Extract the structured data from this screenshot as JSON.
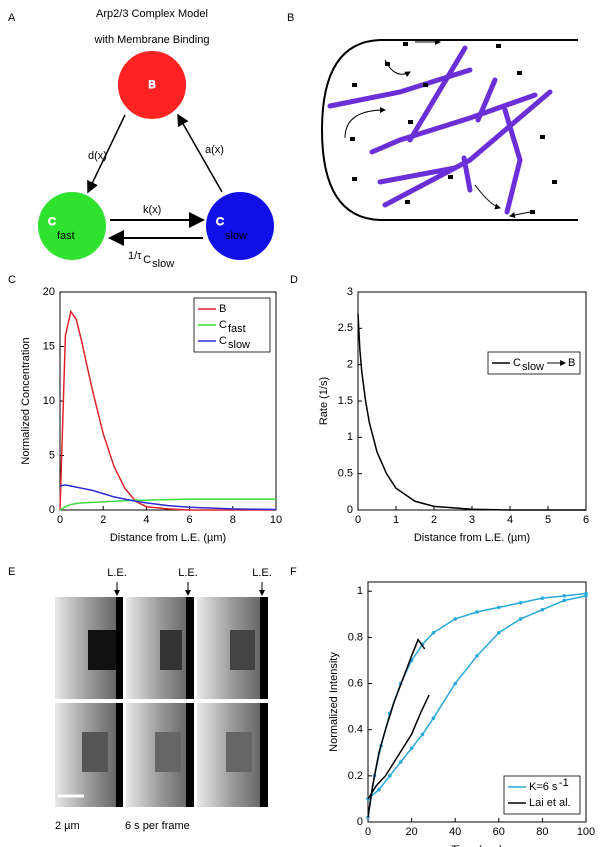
{
  "panel_labels": [
    "A",
    "B",
    "C",
    "D",
    "E",
    "F"
  ],
  "diagram_a": {
    "title": [
      "Arp2/3 Complex Model",
      "with Membrane Binding"
    ],
    "nodes": [
      {
        "label": "B"
      },
      {
        "label": "C",
        "sub": "fast"
      },
      {
        "label": "C",
        "sub": "slow"
      }
    ],
    "edges": [
      {
        "label": "d(x)"
      },
      {
        "label": "a(x)"
      },
      {
        "label": "k(x)"
      },
      {
        "label": "1/τ",
        "sub": "C",
        "subsub": "slow"
      }
    ]
  },
  "figure_e": {
    "marker_labels": [
      "L.E.",
      "L.E.",
      "L.E."
    ],
    "scale_label": "2 µm",
    "frame_label": "6 s per frame"
  },
  "chart_data": [
    {
      "type": "line",
      "xlabel": "Distance from L.E. (µm)",
      "ylabel": "Normalized Concentration",
      "x": [
        0,
        0.25,
        0.5,
        0.75,
        1,
        1.5,
        2,
        2.5,
        3,
        3.5,
        4,
        5,
        6,
        8,
        10
      ],
      "series": [
        {
          "name": "B",
          "color": "#e0232b",
          "values": [
            0,
            16,
            18.2,
            17.5,
            15.5,
            11,
            7,
            4,
            2,
            0.8,
            0.3,
            0.1,
            0,
            0,
            0
          ]
        },
        {
          "name": "C",
          "name_sub": "fast",
          "color": "#3ddc3d",
          "values": [
            0,
            0.3,
            0.5,
            0.6,
            0.65,
            0.7,
            0.75,
            0.8,
            0.85,
            0.9,
            0.9,
            0.95,
            1,
            1,
            1
          ]
        },
        {
          "name": "C",
          "name_sub": "slow",
          "color": "#2b2bd6",
          "values": [
            2.2,
            2.3,
            2.2,
            2.1,
            2,
            1.8,
            1.5,
            1.2,
            1,
            0.8,
            0.65,
            0.4,
            0.25,
            0.1,
            0.05
          ]
        }
      ],
      "xlim": [
        0,
        10
      ],
      "xticks": [
        0,
        2,
        4,
        6,
        8,
        10
      ],
      "ylim": [
        0,
        20
      ],
      "yticks": [
        0,
        5,
        10,
        15,
        20
      ],
      "legend": "upper right",
      "grid": false
    },
    {
      "type": "line",
      "xlabel": "Distance from L.E. (µm)",
      "ylabel": "Rate (1/s)",
      "x": [
        0,
        0.05,
        0.1,
        0.2,
        0.3,
        0.5,
        0.75,
        1,
        1.5,
        2,
        3,
        4,
        5,
        6
      ],
      "series": [
        {
          "name": "C",
          "name_sub": "slow",
          "name_target": "B",
          "color": "#000000",
          "values": [
            2.7,
            2.2,
            1.9,
            1.5,
            1.2,
            0.8,
            0.5,
            0.3,
            0.12,
            0.05,
            0.01,
            0,
            0,
            0
          ]
        }
      ],
      "xlim": [
        0,
        6
      ],
      "xticks": [
        0,
        1,
        2,
        3,
        4,
        5,
        6
      ],
      "ylim": [
        0,
        3
      ],
      "yticks": [
        0,
        0.5,
        1,
        1.5,
        2,
        2.5,
        3
      ],
      "legend": "upper right",
      "grid": false
    },
    {
      "type": "line",
      "xlabel": "Time (sec)",
      "ylabel": "Normalized Intensity",
      "series": [
        {
          "name": "K=6 s",
          "name_sup": "-1",
          "color": "#29a9d9",
          "marker": "o",
          "x": [
            0,
            3,
            6,
            10,
            15,
            20,
            25,
            30,
            40,
            50,
            60,
            70,
            80,
            90,
            100,
            null,
            0,
            5,
            10,
            15,
            20,
            25,
            30,
            40,
            50,
            60,
            70,
            80,
            90,
            100
          ],
          "values": [
            0.02,
            0.2,
            0.33,
            0.47,
            0.6,
            0.7,
            0.77,
            0.82,
            0.88,
            0.91,
            0.93,
            0.95,
            0.97,
            0.98,
            0.99,
            null,
            0.1,
            0.14,
            0.2,
            0.26,
            0.32,
            0.38,
            0.45,
            0.6,
            0.72,
            0.82,
            0.88,
            0.92,
            0.96,
            0.98
          ]
        },
        {
          "name": "Lai et al.",
          "color": "#000000",
          "x": [
            0,
            2,
            5,
            8,
            12,
            16,
            20,
            23,
            26,
            null,
            0,
            4,
            8,
            12,
            16,
            20,
            24,
            28
          ],
          "values": [
            0.02,
            0.15,
            0.3,
            0.4,
            0.52,
            0.62,
            0.72,
            0.79,
            0.75,
            null,
            0.1,
            0.16,
            0.2,
            0.26,
            0.32,
            0.38,
            0.47,
            0.55
          ]
        }
      ],
      "xlim": [
        0,
        100
      ],
      "xticks": [
        0,
        20,
        40,
        60,
        80,
        100
      ],
      "ylim": [
        0,
        1.04
      ],
      "yticks": [
        0,
        0.2,
        0.4,
        0.6,
        0.8,
        1
      ],
      "legend": "lower right",
      "grid": false
    }
  ]
}
